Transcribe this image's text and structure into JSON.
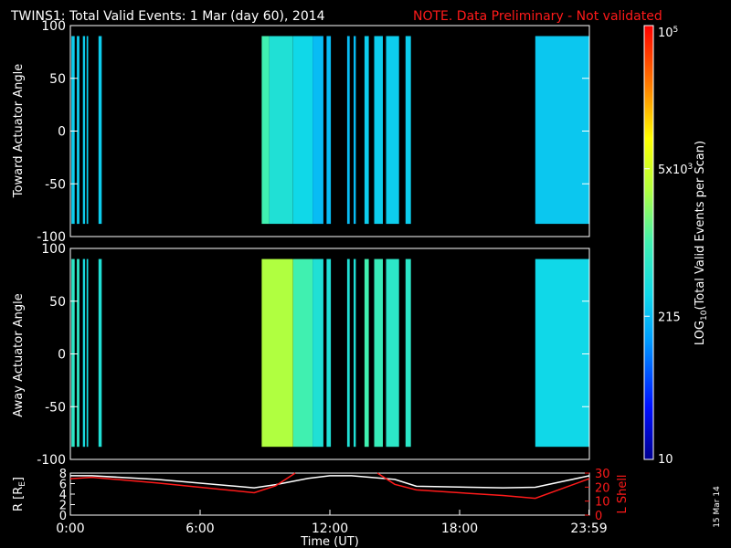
{
  "header": {
    "title": "TWINS1: Total Valid Events:  1 Mar (day  60), 2014",
    "note": "NOTE. Data Preliminary - Not validated"
  },
  "side_stamp": "15 Mar 14",
  "colors": {
    "note": "#ff1a1a",
    "line_red": "#ff1a1a",
    "line_white": "#ffffff",
    "background": "#000000"
  },
  "colorbar": {
    "label": "LOG10(Total Valid Events per Scan)",
    "label_parts": {
      "pre": "LOG",
      "sub": "10",
      "post": "(Total Valid Events per Scan)"
    },
    "ticks": [
      {
        "text": "10",
        "frac": 0.0
      },
      {
        "text": "215",
        "frac": 0.33
      },
      {
        "text": "5x10",
        "sup": "3",
        "frac": 0.67
      },
      {
        "text": "10",
        "sup": "5",
        "frac": 1.0
      }
    ]
  },
  "chart_data": [
    {
      "type": "heatmap",
      "ylabel": "Toward Actuator Angle",
      "xlim": [
        0,
        24
      ],
      "ylim": [
        -100,
        100
      ],
      "yticks": [
        100,
        50,
        0,
        -50,
        -100
      ],
      "data_yrange": [
        -88,
        90
      ],
      "cells": [
        {
          "t0": 0.05,
          "t1": 0.2,
          "c": 0.36
        },
        {
          "t0": 0.3,
          "t1": 0.42,
          "c": 0.36
        },
        {
          "t0": 0.58,
          "t1": 0.68,
          "c": 0.36
        },
        {
          "t0": 0.75,
          "t1": 0.82,
          "c": 0.36
        },
        {
          "t0": 1.3,
          "t1": 1.45,
          "c": 0.36
        },
        {
          "t0": 8.85,
          "t1": 9.2,
          "c": 0.5
        },
        {
          "t0": 9.2,
          "t1": 10.3,
          "c": 0.42
        },
        {
          "t0": 10.3,
          "t1": 11.2,
          "c": 0.38
        },
        {
          "t0": 11.2,
          "t1": 11.7,
          "c": 0.33
        },
        {
          "t0": 11.85,
          "t1": 12.05,
          "c": 0.33
        },
        {
          "t0": 12.8,
          "t1": 12.92,
          "c": 0.33
        },
        {
          "t0": 13.1,
          "t1": 13.2,
          "c": 0.33
        },
        {
          "t0": 13.6,
          "t1": 13.8,
          "c": 0.36
        },
        {
          "t0": 14.05,
          "t1": 14.45,
          "c": 0.36
        },
        {
          "t0": 14.6,
          "t1": 15.2,
          "c": 0.36
        },
        {
          "t0": 15.5,
          "t1": 15.75,
          "c": 0.36
        },
        {
          "t0": 21.5,
          "t1": 24.0,
          "c": 0.35
        }
      ]
    },
    {
      "type": "heatmap",
      "ylabel": "Away Actuator Angle",
      "xlim": [
        0,
        24
      ],
      "ylim": [
        -100,
        100
      ],
      "yticks": [
        100,
        50,
        0,
        -50,
        -100
      ],
      "data_yrange": [
        -88,
        90
      ],
      "cells": [
        {
          "t0": 0.05,
          "t1": 0.2,
          "c": 0.45
        },
        {
          "t0": 0.3,
          "t1": 0.42,
          "c": 0.45
        },
        {
          "t0": 0.58,
          "t1": 0.68,
          "c": 0.4
        },
        {
          "t0": 0.75,
          "t1": 0.82,
          "c": 0.4
        },
        {
          "t0": 1.3,
          "t1": 1.45,
          "c": 0.42
        },
        {
          "t0": 8.85,
          "t1": 10.3,
          "c": 0.62
        },
        {
          "t0": 10.3,
          "t1": 11.2,
          "c": 0.5
        },
        {
          "t0": 11.2,
          "t1": 11.7,
          "c": 0.42
        },
        {
          "t0": 11.85,
          "t1": 12.05,
          "c": 0.42
        },
        {
          "t0": 12.8,
          "t1": 12.92,
          "c": 0.42
        },
        {
          "t0": 13.1,
          "t1": 13.2,
          "c": 0.42
        },
        {
          "t0": 13.6,
          "t1": 13.8,
          "c": 0.5
        },
        {
          "t0": 14.05,
          "t1": 14.45,
          "c": 0.48
        },
        {
          "t0": 14.6,
          "t1": 15.2,
          "c": 0.45
        },
        {
          "t0": 15.5,
          "t1": 15.75,
          "c": 0.45
        },
        {
          "t0": 21.5,
          "t1": 24.0,
          "c": 0.38
        }
      ]
    },
    {
      "type": "line",
      "ylabel": "R [RE]",
      "ylabel_parts": {
        "pre": "R [R",
        "sub": "E",
        "post": "]"
      },
      "ylabel_right": "L Shell",
      "xlabel": "Time (UT)",
      "xlim": [
        0,
        24
      ],
      "ylim": [
        0,
        8
      ],
      "ylim_right": [
        0,
        30
      ],
      "yticks_left": [
        0,
        2,
        4,
        6,
        8
      ],
      "yticks_right": [
        0,
        10,
        20,
        30
      ],
      "xticks": [
        {
          "t": 0,
          "text": "0:00"
        },
        {
          "t": 6,
          "text": "6:00"
        },
        {
          "t": 12,
          "text": "12:00"
        },
        {
          "t": 18,
          "text": "18:00"
        },
        {
          "t": 23.98,
          "text": "23:59"
        }
      ],
      "series": [
        {
          "axis": "left",
          "color": "#ffffff",
          "x": [
            0,
            1,
            4,
            8.5,
            9.5,
            11,
            12,
            13,
            15,
            16,
            20,
            21.5,
            24
          ],
          "y": [
            7.5,
            7.5,
            6.8,
            5.2,
            5.8,
            7.0,
            7.5,
            7.5,
            6.8,
            5.5,
            5.2,
            5.3,
            7.5
          ]
        },
        {
          "axis": "right",
          "color": "#ff1a1a",
          "x": [
            0,
            1,
            4,
            8.5,
            9.5,
            10.4
          ],
          "y": [
            26,
            27,
            23,
            16,
            21,
            30
          ]
        },
        {
          "axis": "right",
          "color": "#ff1a1a",
          "x": [
            14.2,
            15,
            16,
            18,
            20,
            21.5,
            24
          ],
          "y": [
            30,
            22,
            18,
            16,
            14,
            12,
            26
          ]
        }
      ]
    }
  ]
}
